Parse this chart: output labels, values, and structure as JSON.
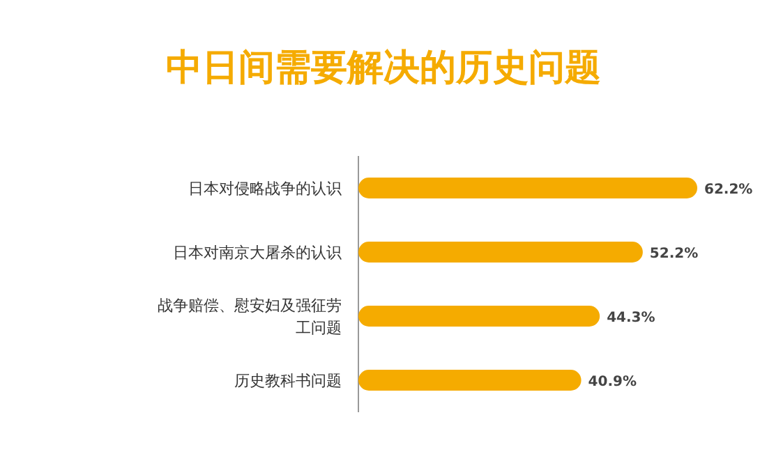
{
  "chart_data": {
    "type": "bar",
    "orientation": "horizontal",
    "title": "中日间需要解决的历史问题",
    "categories": [
      "日本对侵略战争的认识",
      "日本对南京大屠杀的认识",
      "战争赔偿、慰安妇及强征劳工问题",
      "历史教科书问题"
    ],
    "values": [
      62.2,
      52.2,
      44.3,
      40.9
    ],
    "value_labels": [
      "62.2%",
      "52.2%",
      "44.3%",
      "40.9%"
    ],
    "color": "#f5ab00"
  }
}
